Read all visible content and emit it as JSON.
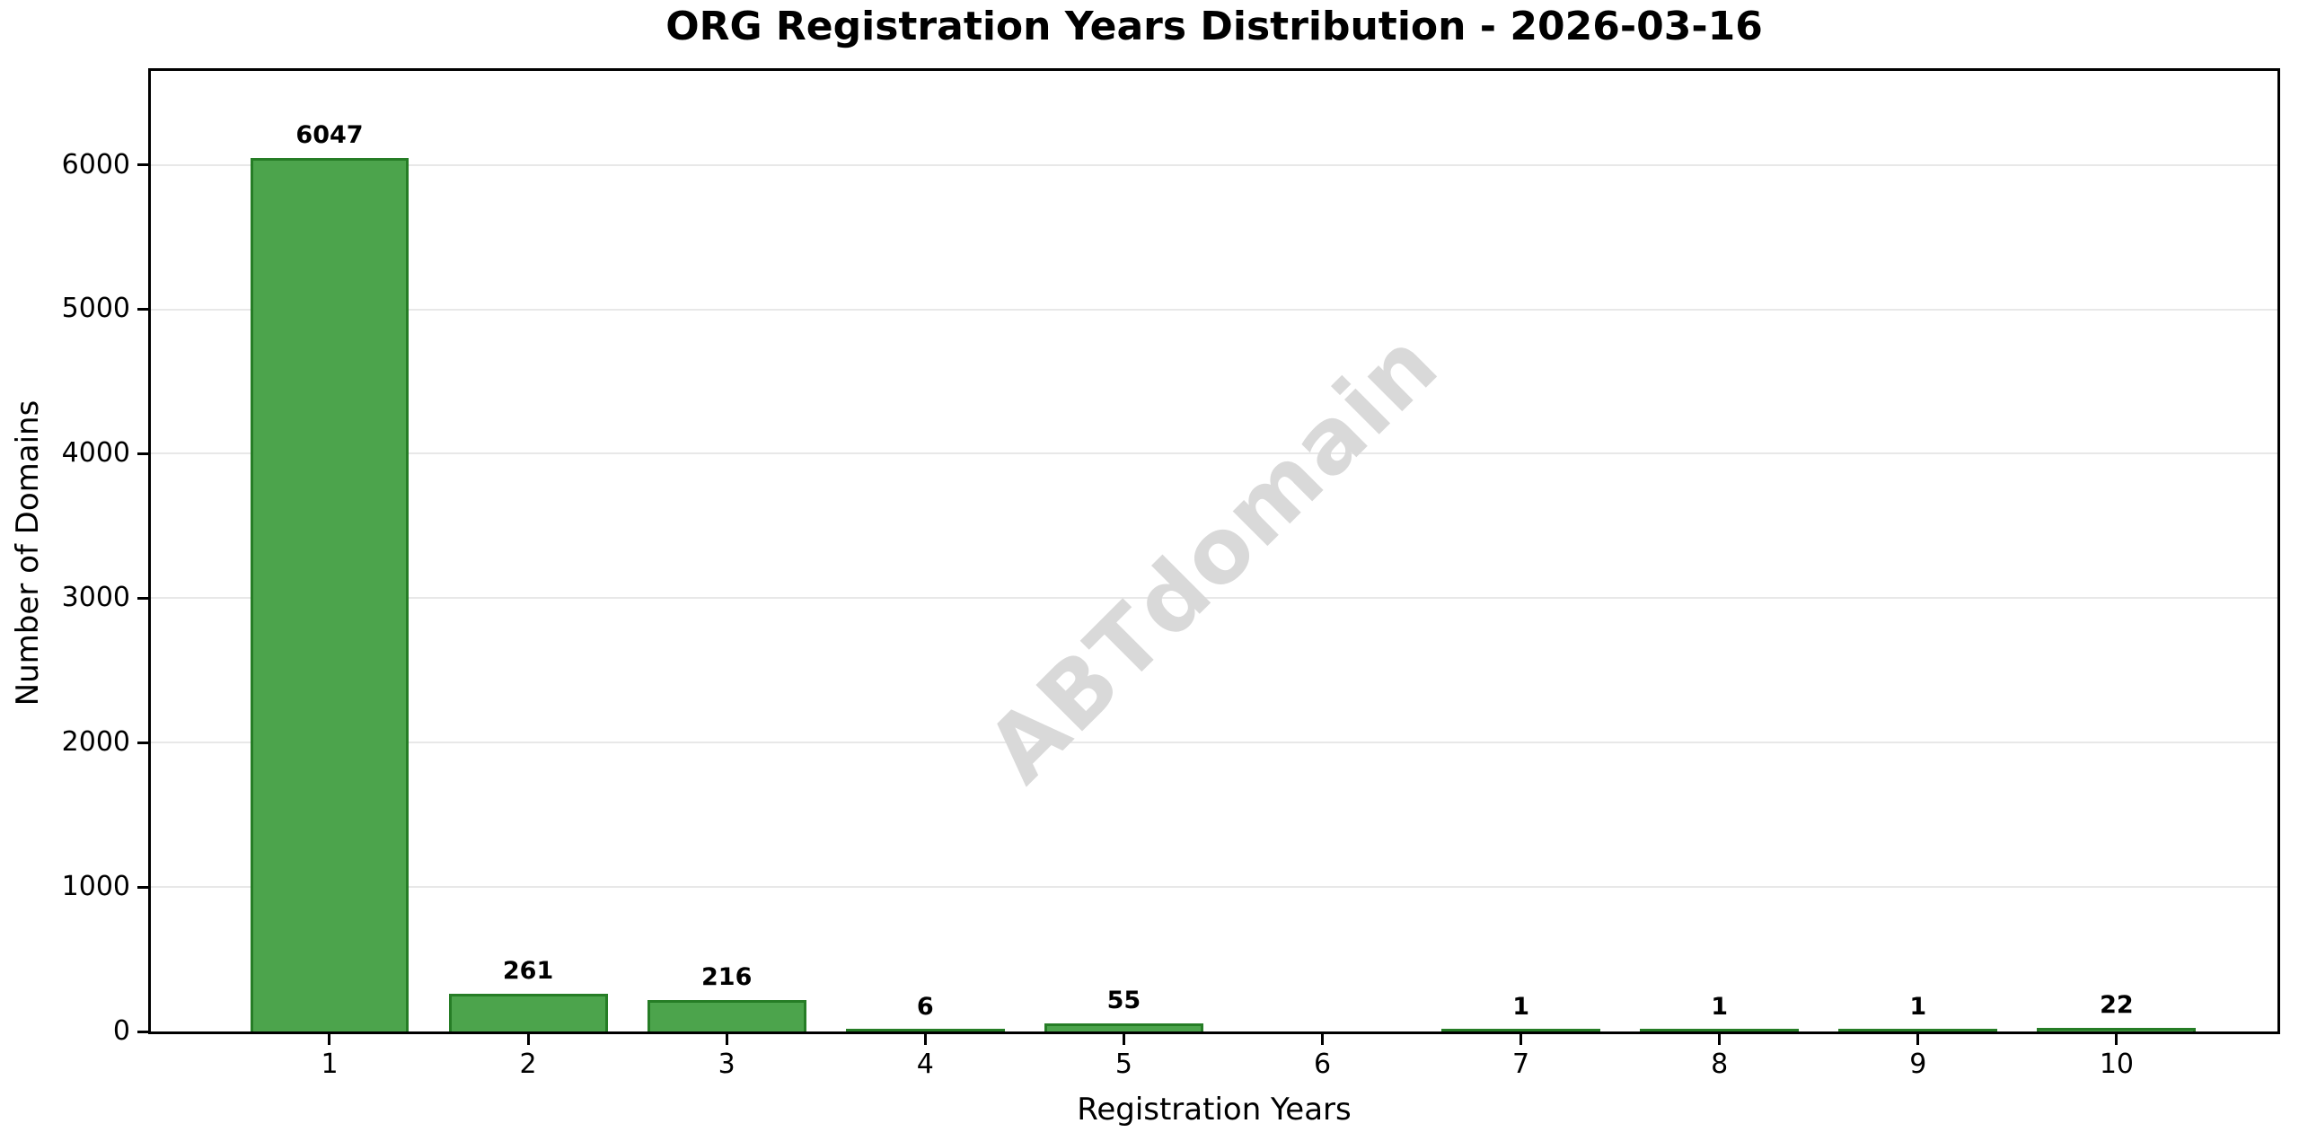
{
  "chart_data": {
    "type": "bar",
    "title": "ORG Registration Years Distribution - 2026-03-16",
    "xlabel": "Registration Years",
    "ylabel": "Number of Domains",
    "categories": [
      1,
      2,
      3,
      4,
      5,
      6,
      7,
      8,
      9,
      10
    ],
    "values": [
      6047,
      261,
      216,
      6,
      55,
      0,
      1,
      1,
      1,
      22
    ],
    "bar_labels": [
      "6047",
      "261",
      "216",
      "6",
      "55",
      "",
      "1",
      "1",
      "1",
      "22"
    ],
    "yticks": [
      0,
      1000,
      2000,
      3000,
      4000,
      5000,
      6000
    ],
    "ylim": [
      0,
      6650
    ],
    "xlim": [
      0.1,
      10.81
    ],
    "bar_width_units": 0.8,
    "grid": "horizontal",
    "legend": "none",
    "watermark": "ABTdomain",
    "colors": {
      "bar_fill": "#4ca44c",
      "bar_edge": "#267d26",
      "gridline": "#e8e8e8",
      "watermark": "#d9d9d9",
      "text": "#000000"
    }
  }
}
